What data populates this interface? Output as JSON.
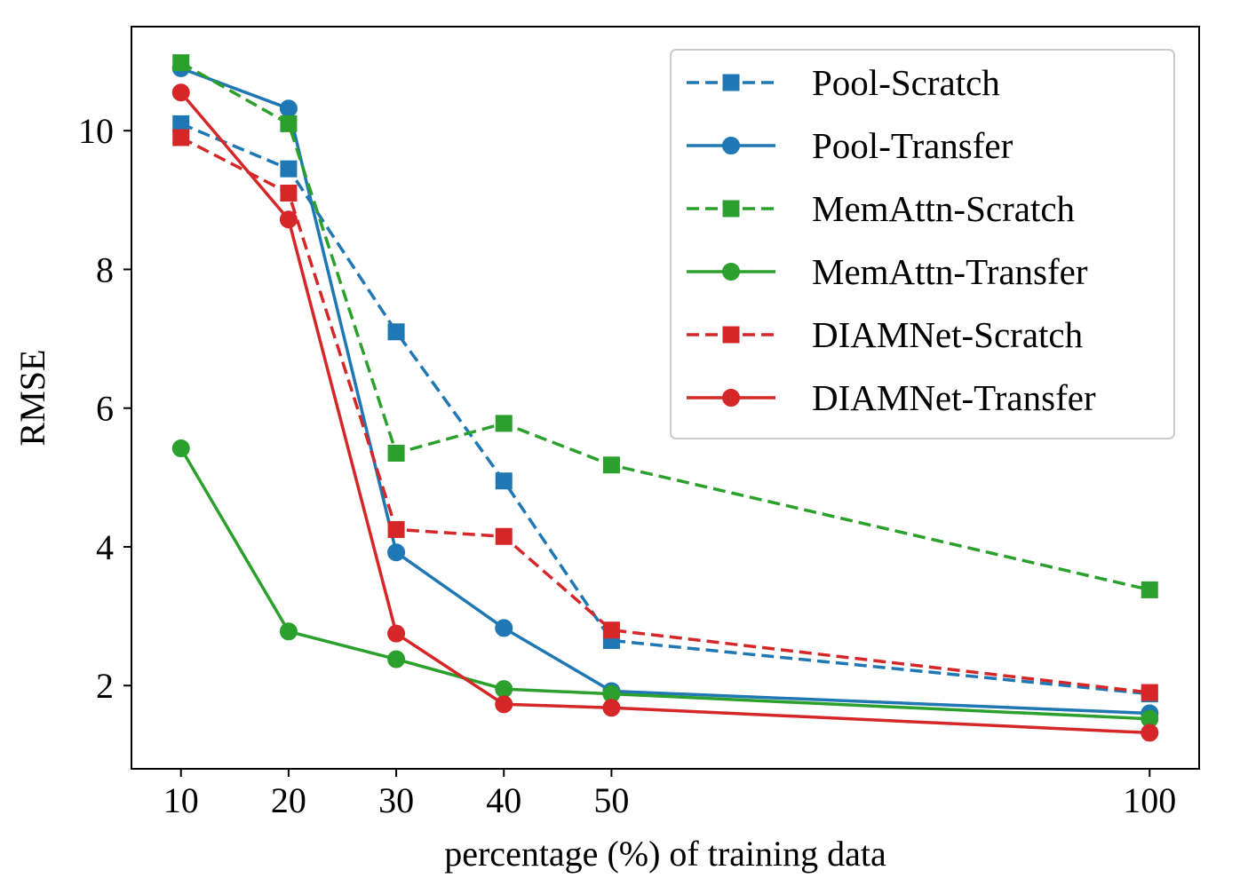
{
  "chart_data": {
    "type": "line",
    "title": "",
    "xlabel": "percentage (%) of training data",
    "ylabel": "RMSE",
    "x": [
      10,
      20,
      30,
      40,
      50,
      100
    ],
    "x_tick_labels": [
      "10",
      "20",
      "30",
      "40",
      "50",
      "100"
    ],
    "xlim": [
      5.4,
      104.6
    ],
    "ylim": [
      0.8,
      11.5
    ],
    "y_ticks": [
      2,
      4,
      6,
      8,
      10
    ],
    "y_tick_labels": [
      "2",
      "4",
      "6",
      "8",
      "10"
    ],
    "grid": false,
    "legend_position": "top-right",
    "series": [
      {
        "name": "Pool-Scratch",
        "color": "#1f77b4",
        "line": "dashed",
        "marker": "square",
        "values": [
          10.1,
          9.45,
          7.1,
          4.95,
          2.65,
          1.88
        ]
      },
      {
        "name": "Pool-Transfer",
        "color": "#1f77b4",
        "line": "solid",
        "marker": "circle",
        "values": [
          10.9,
          10.32,
          3.92,
          2.83,
          1.92,
          1.6
        ]
      },
      {
        "name": "MemAttn-Scratch",
        "color": "#2ca02c",
        "line": "dashed",
        "marker": "square",
        "values": [
          10.98,
          10.1,
          5.35,
          5.78,
          5.18,
          3.38
        ]
      },
      {
        "name": "MemAttn-Transfer",
        "color": "#2ca02c",
        "line": "solid",
        "marker": "circle",
        "values": [
          5.42,
          2.78,
          2.38,
          1.95,
          1.88,
          1.52
        ]
      },
      {
        "name": "DIAMNet-Scratch",
        "color": "#d62728",
        "line": "dashed",
        "marker": "square",
        "values": [
          9.9,
          9.1,
          4.25,
          4.15,
          2.8,
          1.9
        ]
      },
      {
        "name": "DIAMNet-Transfer",
        "color": "#d62728",
        "line": "solid",
        "marker": "circle",
        "values": [
          10.55,
          8.72,
          2.75,
          1.73,
          1.68,
          1.32
        ]
      }
    ]
  }
}
